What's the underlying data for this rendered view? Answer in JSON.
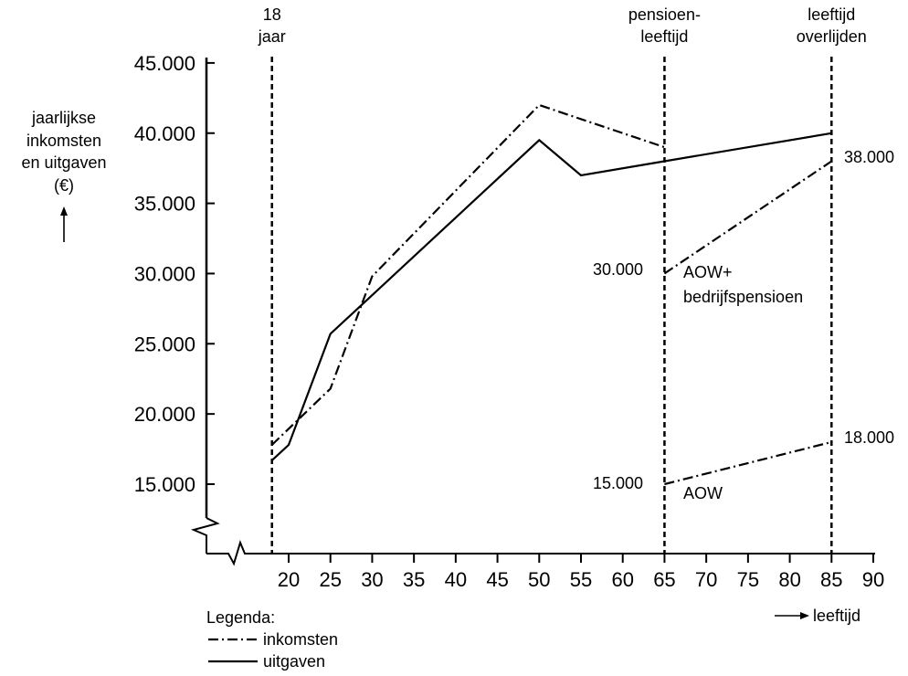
{
  "chart_data": {
    "type": "line",
    "ylabel": [
      "jaarlijkse",
      "inkomsten",
      "en uitgaven",
      "(€)"
    ],
    "xlabel": "leeftijd",
    "xlim": [
      15,
      90
    ],
    "ylim": [
      10000,
      45000
    ],
    "x_ticks": [
      20,
      25,
      30,
      35,
      40,
      45,
      50,
      55,
      60,
      65,
      70,
      75,
      80,
      85,
      90
    ],
    "y_ticks": [
      {
        "value": 15000,
        "label": "15.000"
      },
      {
        "value": 20000,
        "label": "20.000"
      },
      {
        "value": 25000,
        "label": "25.000"
      },
      {
        "value": 30000,
        "label": "30.000"
      },
      {
        "value": 35000,
        "label": "35.000"
      },
      {
        "value": 40000,
        "label": "40.000"
      },
      {
        "value": 45000,
        "label": "45.000"
      }
    ],
    "vertical_markers": [
      {
        "x": 18,
        "label": [
          "18",
          "jaar"
        ]
      },
      {
        "x": 65,
        "label": [
          "pensioen-",
          "leeftijd"
        ]
      },
      {
        "x": 85,
        "label": [
          "leeftijd",
          "overlijden"
        ]
      }
    ],
    "series": [
      {
        "name": "inkomsten",
        "style": "dashdot",
        "points": [
          [
            18,
            17800
          ],
          [
            25,
            21800
          ],
          [
            30,
            29800
          ],
          [
            50,
            42000
          ],
          [
            65,
            39000
          ]
        ]
      },
      {
        "name": "uitgaven",
        "style": "solid",
        "points": [
          [
            18,
            16700
          ],
          [
            20,
            17800
          ],
          [
            25,
            25700
          ],
          [
            50,
            39500
          ],
          [
            55,
            37000
          ],
          [
            65,
            38000
          ],
          [
            85,
            40000
          ]
        ]
      },
      {
        "name": "AOW+ bedrijfspensioen",
        "style": "dashdot",
        "points": [
          [
            65,
            30000
          ],
          [
            85,
            38000
          ]
        ]
      },
      {
        "name": "AOW",
        "style": "dashdot",
        "points": [
          [
            65,
            15000
          ],
          [
            85,
            18000
          ]
        ]
      }
    ],
    "annotations": [
      {
        "text": "38.000"
      },
      {
        "text": "30.000"
      },
      {
        "text": "AOW+"
      },
      {
        "text": "bedrijfspensioen"
      },
      {
        "text": "18.000"
      },
      {
        "text": "15.000"
      },
      {
        "text": "AOW"
      }
    ],
    "legend": {
      "title": "Legenda:",
      "placement": "bottom-left",
      "items": [
        {
          "label": "inkomsten",
          "style": "dashdot"
        },
        {
          "label": "uitgaven",
          "style": "solid"
        }
      ]
    }
  }
}
